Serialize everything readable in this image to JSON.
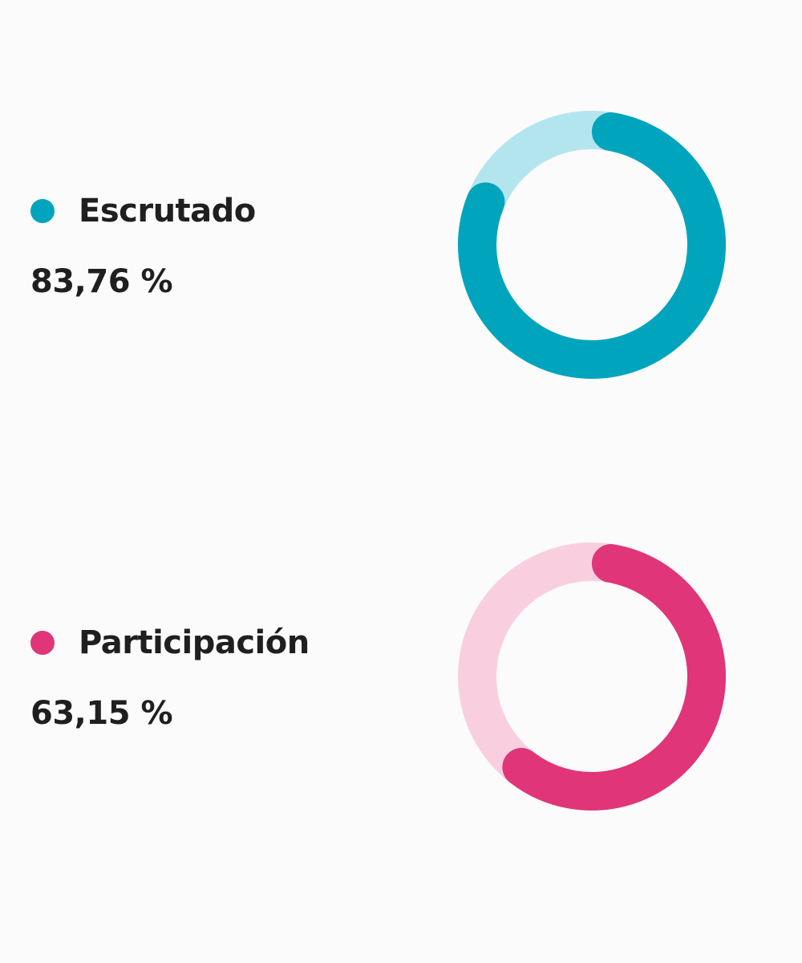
{
  "chart_data": [
    {
      "type": "pie",
      "label": "Escrutado",
      "value_text": "83,76 %",
      "value": 83.76,
      "max": 100,
      "color": "#00a5bd",
      "track_color": "#b3e5ef"
    },
    {
      "type": "pie",
      "label": "Participación",
      "value_text": "63,15 %",
      "value": 63.15,
      "max": 100,
      "color": "#e03579",
      "track_color": "#f9cfdf"
    }
  ]
}
